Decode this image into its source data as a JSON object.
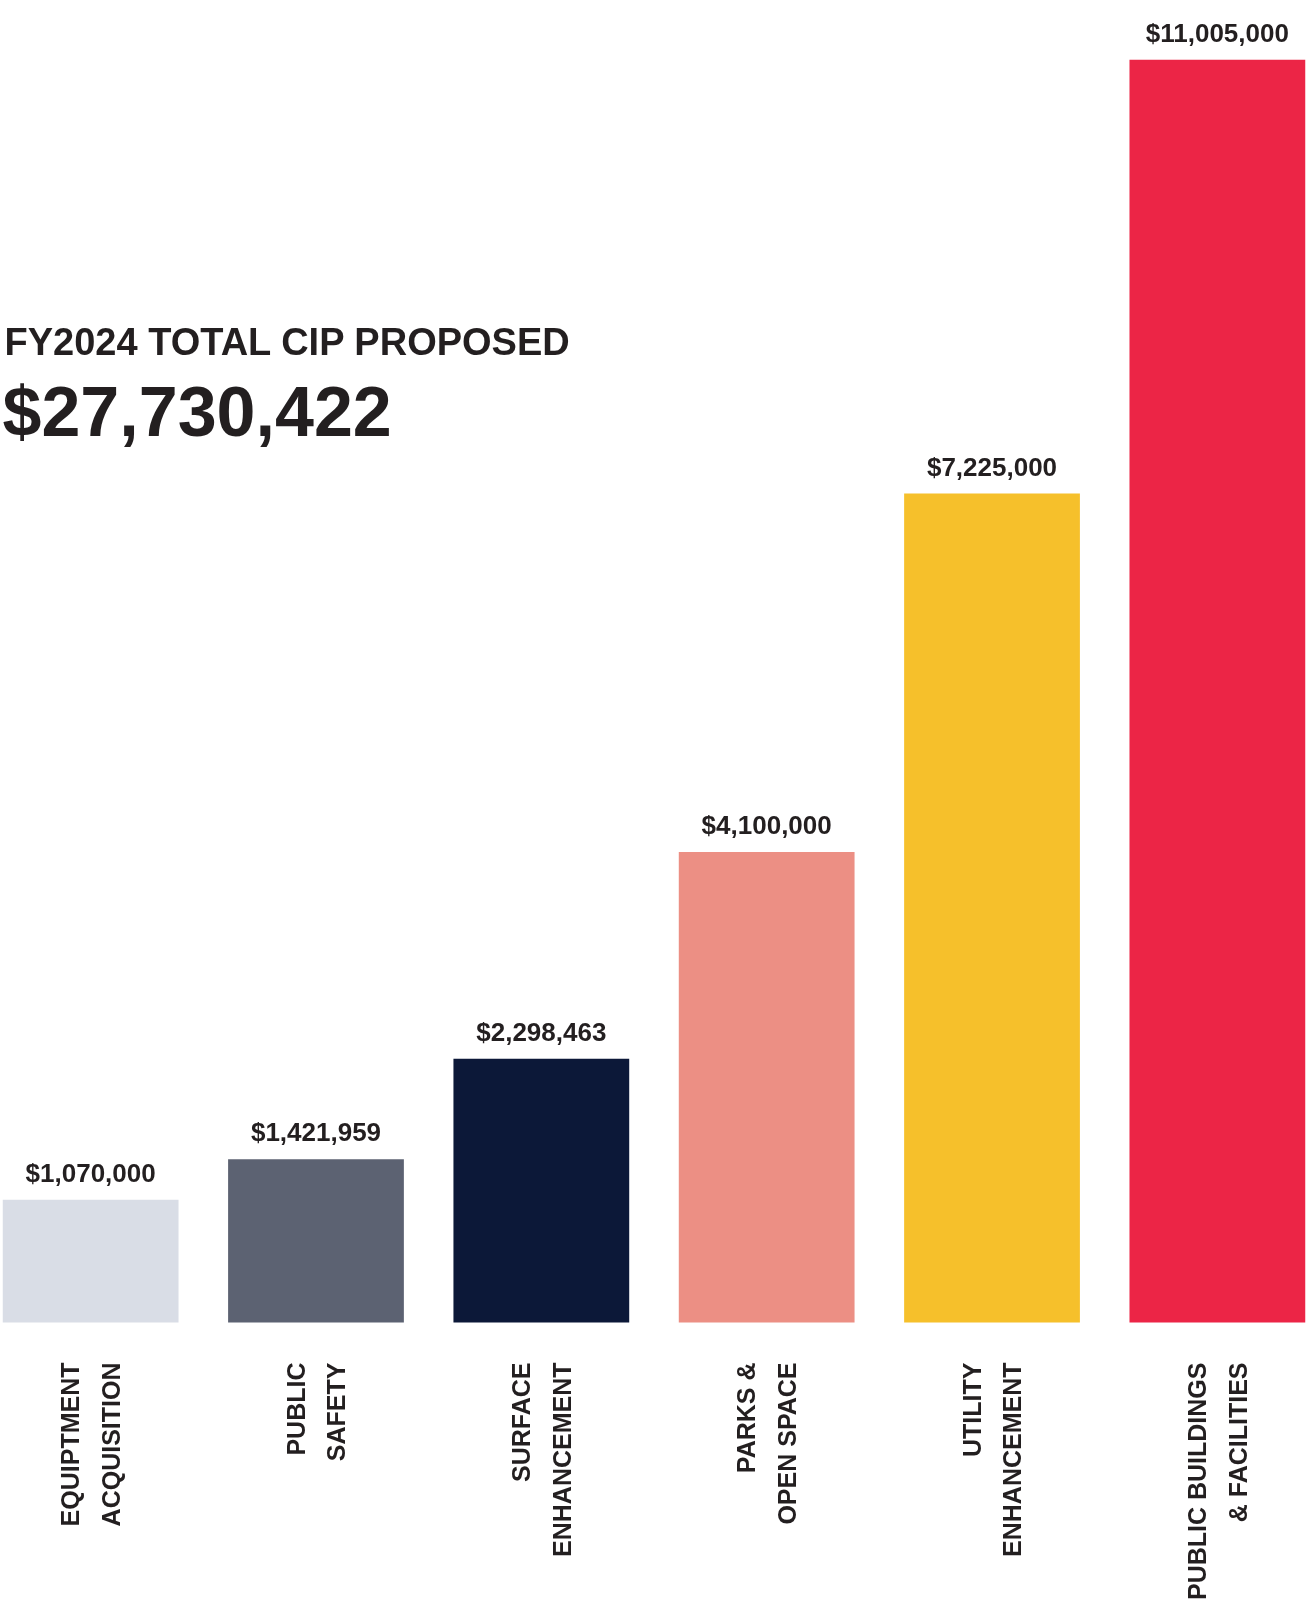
{
  "chart_data": {
    "type": "bar",
    "title": "FY2024 TOTAL CIP PROPOSED",
    "subtitle": "$27,730,422",
    "categories": [
      "EQUIPTMENT\nACQUISITION",
      "PUBLIC\nSAFETY",
      "SURFACE\nENHANCEMENT",
      "PARKS &\nOPEN SPACE",
      "UTILITY\nENHANCEMENT",
      "PUBLIC BUILDINGS\n& FACILITIES"
    ],
    "values": [
      1070000,
      1421959,
      2298463,
      4100000,
      7225000,
      11005000
    ],
    "value_labels": [
      "$1,070,000",
      "$1,421,959",
      "$2,298,463",
      "$4,100,000",
      "$7,225,000",
      "$11,005,000"
    ],
    "colors": [
      "#d9dde6",
      "#5c6272",
      "#0c1838",
      "#ec8f84",
      "#f6c02b",
      "#ec2546"
    ]
  }
}
